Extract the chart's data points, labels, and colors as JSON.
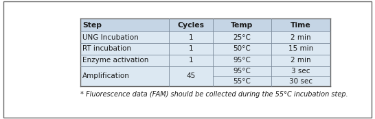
{
  "headers": [
    "Step",
    "Cycles",
    "Temp",
    "Time"
  ],
  "rows": [
    [
      "UNG Incubation",
      "1",
      "25°C",
      "2 min"
    ],
    [
      "RT incubation",
      "1",
      "50°C",
      "15 min"
    ],
    [
      "Enzyme activation",
      "1",
      "95°C",
      "2 min"
    ],
    [
      "Amplification",
      "45",
      "95°C",
      "3 sec"
    ],
    [
      "",
      "",
      "55°C",
      "30 sec"
    ]
  ],
  "footnote": "* Fluorescence data (FAM) should be collected during the 55°C incubation step.",
  "header_bg": "#c5d5e5",
  "row_bg": "#dce8f2",
  "border_color": "#7a8a9a",
  "text_color": "#1a1a1a",
  "outer_border_color": "#666666",
  "fig_bg": "#ffffff",
  "col_aligns": [
    "left",
    "center",
    "center",
    "center"
  ],
  "header_fontsize": 7.8,
  "row_fontsize": 7.5,
  "footnote_fontsize": 7.0
}
